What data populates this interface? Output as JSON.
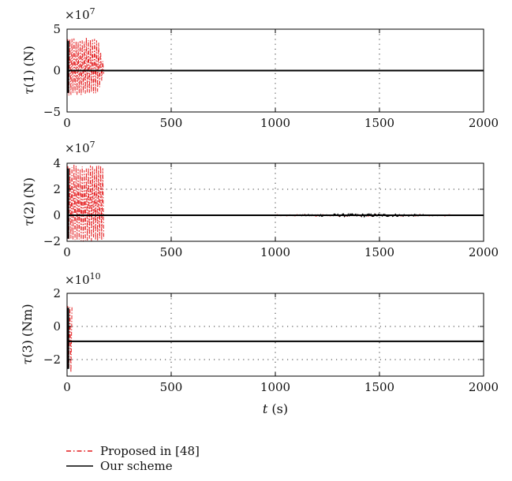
{
  "chart_data": {
    "type": "line",
    "grid": true,
    "legend_position": "bottom-left",
    "series_styles": [
      {
        "name": "Proposed in [48]",
        "color": "#e31a1c",
        "style": "dash-dot"
      },
      {
        "name": "Our scheme",
        "color": "#000000",
        "style": "solid"
      }
    ],
    "subplots": [
      {
        "ylabel_symbol": "τ",
        "ylabel_index": "(1)",
        "ylabel_unit": "(N)",
        "xlabel": "",
        "exponent_base": "×10",
        "exponent_power": "7",
        "xlim": [
          0,
          2000
        ],
        "ylim": [
          -5,
          5
        ],
        "xticks": [
          0,
          500,
          1000,
          1500,
          2000
        ],
        "xtick_labels": [
          "0",
          "500",
          "1000",
          "1500",
          "2000"
        ],
        "yticks": [
          -5,
          0,
          5
        ],
        "ytick_labels": [
          "−5",
          "0",
          "5"
        ],
        "proposed": {
          "x_start": 0,
          "x_end": 180,
          "taper_start": 150,
          "amplitude": [
            -3,
            4
          ]
        },
        "ours": {
          "value": 0
        }
      },
      {
        "ylabel_symbol": "τ",
        "ylabel_index": "(2)",
        "ylabel_unit": "(N)",
        "xlabel": "",
        "exponent_base": "×10",
        "exponent_power": "7",
        "xlim": [
          0,
          2000
        ],
        "ylim": [
          -2,
          4
        ],
        "xticks": [
          0,
          500,
          1000,
          1500,
          2000
        ],
        "xtick_labels": [
          "0",
          "500",
          "1000",
          "1500",
          "2000"
        ],
        "yticks": [
          -2,
          0,
          2,
          4
        ],
        "ytick_labels": [
          "−2",
          "0",
          "2",
          "4"
        ],
        "proposed": {
          "x_start": 0,
          "x_end": 180,
          "taper_start": 180,
          "amplitude": [
            -2,
            4
          ]
        },
        "ours": {
          "value": 0,
          "noise_start": 1000,
          "noise_end": 1850,
          "noise_amplitude": 0.12
        }
      },
      {
        "ylabel_symbol": "τ",
        "ylabel_index": "(3)",
        "ylabel_unit": "(Nm)",
        "xlabel_symbol": "t",
        "xlabel_unit": "(s)",
        "exponent_base": "×10",
        "exponent_power": "10",
        "xlim": [
          0,
          2000
        ],
        "ylim": [
          -3,
          2
        ],
        "xticks": [
          0,
          500,
          1000,
          1500,
          2000
        ],
        "xtick_labels": [
          "0",
          "500",
          "1000",
          "1500",
          "2000"
        ],
        "yticks": [
          -2,
          0,
          2
        ],
        "ytick_labels": [
          "−2",
          "0",
          "2"
        ],
        "proposed": {
          "x_start": 0,
          "x_end": 25,
          "taper_start": 25,
          "amplitude": [
            -2.85,
            1.25
          ]
        },
        "ours": {
          "value": -0.9
        }
      }
    ]
  },
  "legend": {
    "items": [
      {
        "label": "Proposed in [48]"
      },
      {
        "label": "Our scheme"
      }
    ]
  }
}
